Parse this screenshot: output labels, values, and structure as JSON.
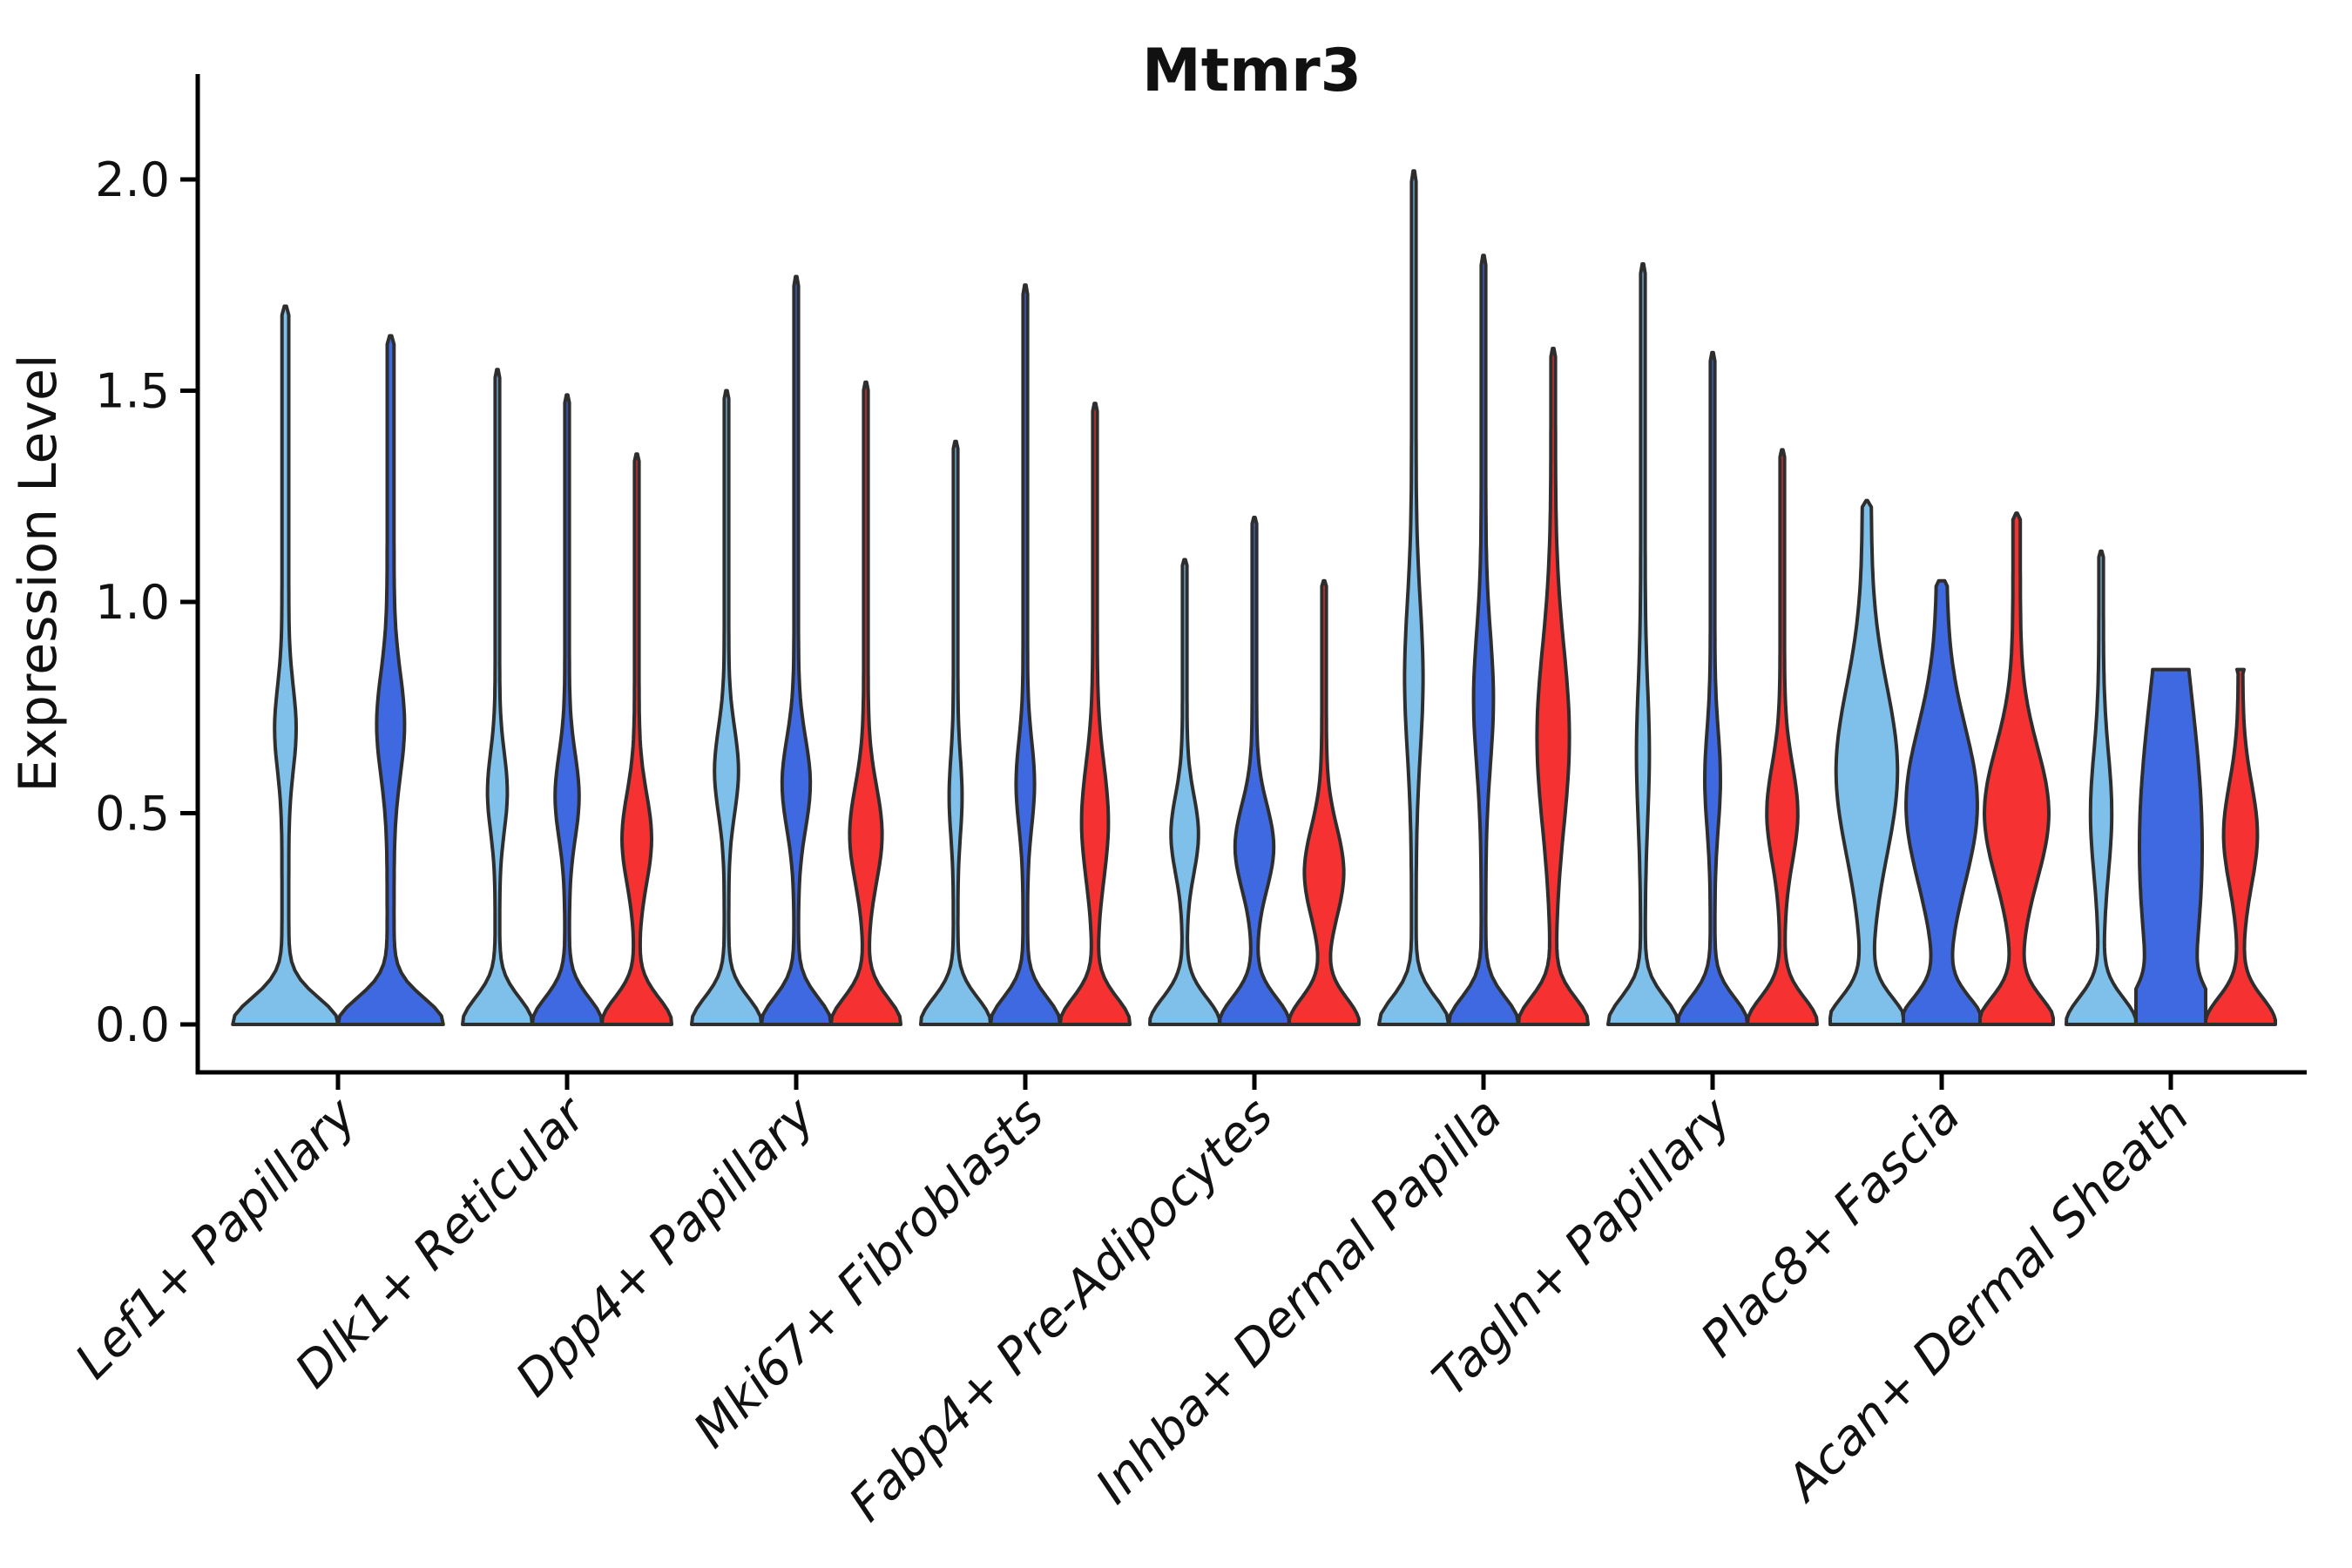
{
  "chart_data": {
    "type": "violin",
    "title": "Mtmr3",
    "ylabel": "Expression Level",
    "xlabel": "",
    "ylim": [
      0.0,
      2.1
    ],
    "ytick_values": [
      0.0,
      0.5,
      1.0,
      1.5,
      2.0
    ],
    "ytick_labels": [
      "0.0",
      "0.5",
      "1.0",
      "1.5",
      "2.0"
    ],
    "grid": false,
    "legend": "none",
    "palette": {
      "lightblue": "#7EC0EA",
      "darkblue": "#3F69E1",
      "red": "#F53131",
      "violin_outline": "#2E2E2E",
      "axis": "#000000"
    },
    "series_order": [
      "lightblue",
      "darkblue",
      "red"
    ],
    "categories": [
      "Lef1+ Papillary",
      "Dlk1+ Reticular",
      "Dpp4+ Papillary",
      "Mki67+ Fibroblasts",
      "Fabp4+ Pre-Adipocytes",
      "Inhba+ Dermal Papilla",
      "Tagln+ Papillary",
      "Plac8+ Fascia",
      "Acan+ Dermal Sheath"
    ],
    "groups": [
      {
        "category": "Lef1+ Papillary",
        "violins": [
          {
            "series": "lightblue",
            "max": 1.7,
            "bulge_center": 0.7,
            "bulge_amp": 0.14,
            "bulge_sigma": 0.14,
            "rel_width": 1.51
          },
          {
            "series": "darkblue",
            "max": 1.63,
            "bulge_center": 0.71,
            "bulge_amp": 0.2,
            "bulge_sigma": 0.17,
            "rel_width": 1.51
          }
        ]
      },
      {
        "category": "Dlk1+ Reticular",
        "violins": [
          {
            "series": "lightblue",
            "max": 1.55,
            "bulge_center": 0.55,
            "bulge_amp": 0.22,
            "bulge_sigma": 0.13
          },
          {
            "series": "darkblue",
            "max": 1.49,
            "bulge_center": 0.54,
            "bulge_amp": 0.28,
            "bulge_sigma": 0.14
          },
          {
            "series": "red",
            "max": 1.35,
            "bulge_center": 0.44,
            "bulge_amp": 0.36,
            "bulge_sigma": 0.15
          }
        ]
      },
      {
        "category": "Dpp4+ Papillary",
        "violins": [
          {
            "series": "lightblue",
            "max": 1.5,
            "bulge_center": 0.6,
            "bulge_amp": 0.28,
            "bulge_sigma": 0.14
          },
          {
            "series": "darkblue",
            "max": 1.77,
            "bulge_center": 0.57,
            "bulge_amp": 0.34,
            "bulge_sigma": 0.15
          },
          {
            "series": "red",
            "max": 1.52,
            "bulge_center": 0.45,
            "bulge_amp": 0.4,
            "bulge_sigma": 0.16
          }
        ]
      },
      {
        "category": "Mki67+ Fibroblasts",
        "violins": [
          {
            "series": "lightblue",
            "max": 1.38,
            "bulge_center": 0.54,
            "bulge_amp": 0.12,
            "bulge_sigma": 0.13
          },
          {
            "series": "darkblue",
            "max": 1.75,
            "bulge_center": 0.57,
            "bulge_amp": 0.2,
            "bulge_sigma": 0.14
          },
          {
            "series": "red",
            "max": 1.47,
            "bulge_center": 0.48,
            "bulge_amp": 0.32,
            "bulge_sigma": 0.19
          }
        ]
      },
      {
        "category": "Fabp4+ Pre-Adipocytes",
        "violins": [
          {
            "series": "lightblue",
            "max": 1.1,
            "bulge_center": 0.45,
            "bulge_amp": 0.33,
            "bulge_sigma": 0.13
          },
          {
            "series": "darkblue",
            "max": 1.2,
            "bulge_center": 0.42,
            "bulge_amp": 0.49,
            "bulge_sigma": 0.14
          },
          {
            "series": "red",
            "max": 1.05,
            "bulge_center": 0.36,
            "bulge_amp": 0.5,
            "bulge_sigma": 0.15
          }
        ]
      },
      {
        "category": "Inhba+ Dermal Papilla",
        "violins": [
          {
            "series": "lightblue",
            "max": 2.02,
            "bulge_center": 0.82,
            "bulge_amp": 0.2,
            "bulge_sigma": 0.25
          },
          {
            "series": "darkblue",
            "max": 1.82,
            "bulge_center": 0.77,
            "bulge_amp": 0.22,
            "bulge_sigma": 0.22
          },
          {
            "series": "red",
            "max": 1.6,
            "bulge_center": 0.68,
            "bulge_amp": 0.4,
            "bulge_sigma": 0.3
          }
        ]
      },
      {
        "category": "Tagln+ Papillary",
        "violins": [
          {
            "series": "lightblue",
            "max": 1.8,
            "bulge_center": 0.64,
            "bulge_amp": 0.12,
            "bulge_sigma": 0.22
          },
          {
            "series": "darkblue",
            "max": 1.59,
            "bulge_center": 0.58,
            "bulge_amp": 0.16,
            "bulge_sigma": 0.16
          },
          {
            "series": "red",
            "max": 1.36,
            "bulge_center": 0.5,
            "bulge_amp": 0.38,
            "bulge_sigma": 0.16
          }
        ]
      },
      {
        "category": "Plac8+ Fascia",
        "violins": [
          {
            "series": "lightblue",
            "max": 1.24,
            "bulge_center": 0.6,
            "bulge_amp": 0.72,
            "bulge_sigma": 0.28,
            "stem_width": 0.12,
            "rel_width": 1.05
          },
          {
            "series": "darkblue",
            "max": 1.05,
            "bulge_center": 0.52,
            "bulge_amp": 0.8,
            "bulge_sigma": 0.26,
            "stem_width": 0.13,
            "rel_width": 1.1,
            "tip_width": 0.08
          },
          {
            "series": "red",
            "max": 1.21,
            "bulge_center": 0.5,
            "bulge_amp": 0.78,
            "bulge_sigma": 0.22,
            "stem_width": 0.1,
            "rel_width": 1.05
          }
        ]
      },
      {
        "category": "Acan+ Dermal Sheath",
        "violins": [
          {
            "series": "lightblue",
            "max": 1.12,
            "bulge_center": 0.5,
            "bulge_amp": 0.24,
            "bulge_sigma": 0.2
          },
          {
            "series": "darkblue",
            "max": 0.84,
            "bulge_center": 0.42,
            "bulge_amp": 0.8,
            "bulge_sigma": 0.52,
            "stem_width": 0.1,
            "tip_width": 0.52
          },
          {
            "series": "red",
            "max": 0.84,
            "bulge_center": 0.45,
            "bulge_amp": 0.42,
            "bulge_sigma": 0.17,
            "tip_width": 0.1
          }
        ]
      }
    ]
  }
}
